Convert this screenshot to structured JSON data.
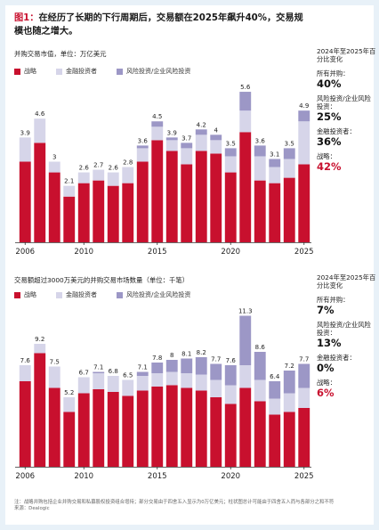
{
  "figure": {
    "number": "图1：",
    "title": "在经历了长期的下行周期后，交易额在2025年飙升40%，交易规模也随之增大。"
  },
  "colors": {
    "strategic": "#c8102e",
    "financial": "#d6d5e9",
    "venture": "#9c97c6"
  },
  "legend": {
    "strategic": "战略",
    "financial": "金融投资者",
    "venture": "风险投资/企业风险投资"
  },
  "chart_data": [
    {
      "type": "bar",
      "stacked": true,
      "title": "并购交易市值，单位：万亿美元",
      "categories": [
        "2006",
        "2007",
        "2008",
        "2009",
        "2010",
        "2011",
        "2012",
        "2013",
        "2014",
        "2015",
        "2016",
        "2017",
        "2018",
        "2019",
        "2020",
        "2021",
        "2022",
        "2023",
        "2024",
        "2025"
      ],
      "x_tick_labels": [
        "2006",
        "2010",
        "2015",
        "2020",
        "2025"
      ],
      "totals": [
        3.9,
        4.6,
        3.0,
        2.1,
        2.6,
        2.7,
        2.6,
        2.8,
        3.6,
        4.5,
        3.9,
        3.7,
        4.2,
        4.0,
        3.5,
        5.6,
        3.6,
        3.1,
        3.5,
        4.9
      ],
      "total_labels": [
        "3.9",
        "4.6",
        "3",
        "2.1",
        "2.6",
        "2.7",
        "2.6",
        "2.8",
        "3.6",
        "4.5",
        "3.9",
        "3.7",
        "4.2",
        "4",
        "3.5",
        "5.6",
        "3.6",
        "3.1",
        "3.5",
        "4.9"
      ],
      "series": [
        {
          "name": "战略",
          "key": "strategic",
          "values": [
            3.0,
            3.7,
            2.6,
            1.7,
            2.2,
            2.3,
            2.1,
            2.2,
            3.0,
            3.8,
            3.4,
            2.9,
            3.4,
            3.3,
            2.6,
            4.1,
            2.3,
            2.2,
            2.4,
            2.9
          ]
        },
        {
          "name": "金融投资者",
          "key": "financial",
          "values": [
            0.9,
            0.9,
            0.4,
            0.4,
            0.4,
            0.4,
            0.5,
            0.6,
            0.5,
            0.5,
            0.4,
            0.6,
            0.6,
            0.5,
            0.6,
            0.8,
            0.9,
            0.6,
            0.7,
            1.6
          ]
        },
        {
          "name": "风险投资/企业风险投资",
          "key": "venture",
          "values": [
            0.0,
            0.0,
            0.0,
            0.0,
            0.0,
            0.0,
            0.0,
            0.0,
            0.1,
            0.2,
            0.1,
            0.2,
            0.2,
            0.2,
            0.3,
            0.7,
            0.4,
            0.3,
            0.4,
            0.4
          ]
        }
      ],
      "ylim": [
        0,
        5.9
      ],
      "grid": false,
      "legend_position": "top-left"
    },
    {
      "type": "bar",
      "stacked": true,
      "title": "交易额超过3000万美元的并购交易市场数量（单位：千笔）",
      "categories": [
        "2006",
        "2007",
        "2008",
        "2009",
        "2010",
        "2011",
        "2012",
        "2013",
        "2014",
        "2015",
        "2016",
        "2017",
        "2018",
        "2019",
        "2020",
        "2021",
        "2022",
        "2023",
        "2024",
        "2025"
      ],
      "x_tick_labels": [
        "2006",
        "2010",
        "2015",
        "2020",
        "2025"
      ],
      "totals": [
        7.6,
        9.2,
        7.5,
        5.2,
        6.7,
        7.1,
        6.8,
        6.5,
        7.1,
        7.8,
        8.0,
        8.1,
        8.2,
        7.7,
        7.6,
        11.3,
        8.6,
        6.4,
        7.2,
        7.7
      ],
      "total_labels": [
        "7.6",
        "9.2",
        "7.5",
        "5.2",
        "6.7",
        "7.1",
        "6.8",
        "6.5",
        "7.1",
        "7.8",
        "8",
        "8.1",
        "8.2",
        "7.7",
        "7.6",
        "11.3",
        "8.6",
        "6.4",
        "7.2",
        "7.7"
      ],
      "series": [
        {
          "name": "战略",
          "key": "strategic",
          "values": [
            6.4,
            8.5,
            5.9,
            4.1,
            5.5,
            5.8,
            5.6,
            5.3,
            5.7,
            6.0,
            6.1,
            5.9,
            5.7,
            5.2,
            4.7,
            5.9,
            4.9,
            3.9,
            4.1,
            4.4
          ]
        },
        {
          "name": "金融投资者",
          "key": "financial",
          "values": [
            1.2,
            0.7,
            1.6,
            1.1,
            1.2,
            1.2,
            1.2,
            1.2,
            1.1,
            1.0,
            1.0,
            1.1,
            1.2,
            1.3,
            1.4,
            1.7,
            1.6,
            1.2,
            1.4,
            1.5
          ]
        },
        {
          "name": "风险投资/企业风险投资",
          "key": "venture",
          "values": [
            0.0,
            0.0,
            0.0,
            0.0,
            0.0,
            0.1,
            0.0,
            0.0,
            0.3,
            0.8,
            0.9,
            1.1,
            1.3,
            1.2,
            1.5,
            3.7,
            2.1,
            1.3,
            1.7,
            1.8
          ]
        }
      ],
      "ylim": [
        0,
        12.2
      ],
      "grid": false,
      "legend_position": "top-left"
    }
  ],
  "side_panels": [
    {
      "heading": "2024年至2025年百分比变化",
      "stats": [
        {
          "label": "所有并购：",
          "value": "40%",
          "highlight": false
        },
        {
          "label": "风险投资/企业风险投资：",
          "value": "25%",
          "highlight": false
        },
        {
          "label": "金融投资者：",
          "value": "36%",
          "highlight": false
        },
        {
          "label": "战略：",
          "value": "42%",
          "highlight": true
        }
      ]
    },
    {
      "heading": "2024年至2025年百分比变化",
      "stats": [
        {
          "label": "所有并购：",
          "value": "7%",
          "highlight": false
        },
        {
          "label": "风险投资/企业风险投资：",
          "value": "13%",
          "highlight": false
        },
        {
          "label": "金融投资者：",
          "value": "0%",
          "highlight": false
        },
        {
          "label": "战略：",
          "value": "6%",
          "highlight": true
        }
      ]
    }
  ],
  "footnote": {
    "note": "注：战略并购包括企业并购交易和私募股权投资组合增持；部分交易由于四舍五入显示为0万亿美元；柱状图总计可能由于四舍五入而与各部分之和不符",
    "source": "来源：Dealogic"
  }
}
